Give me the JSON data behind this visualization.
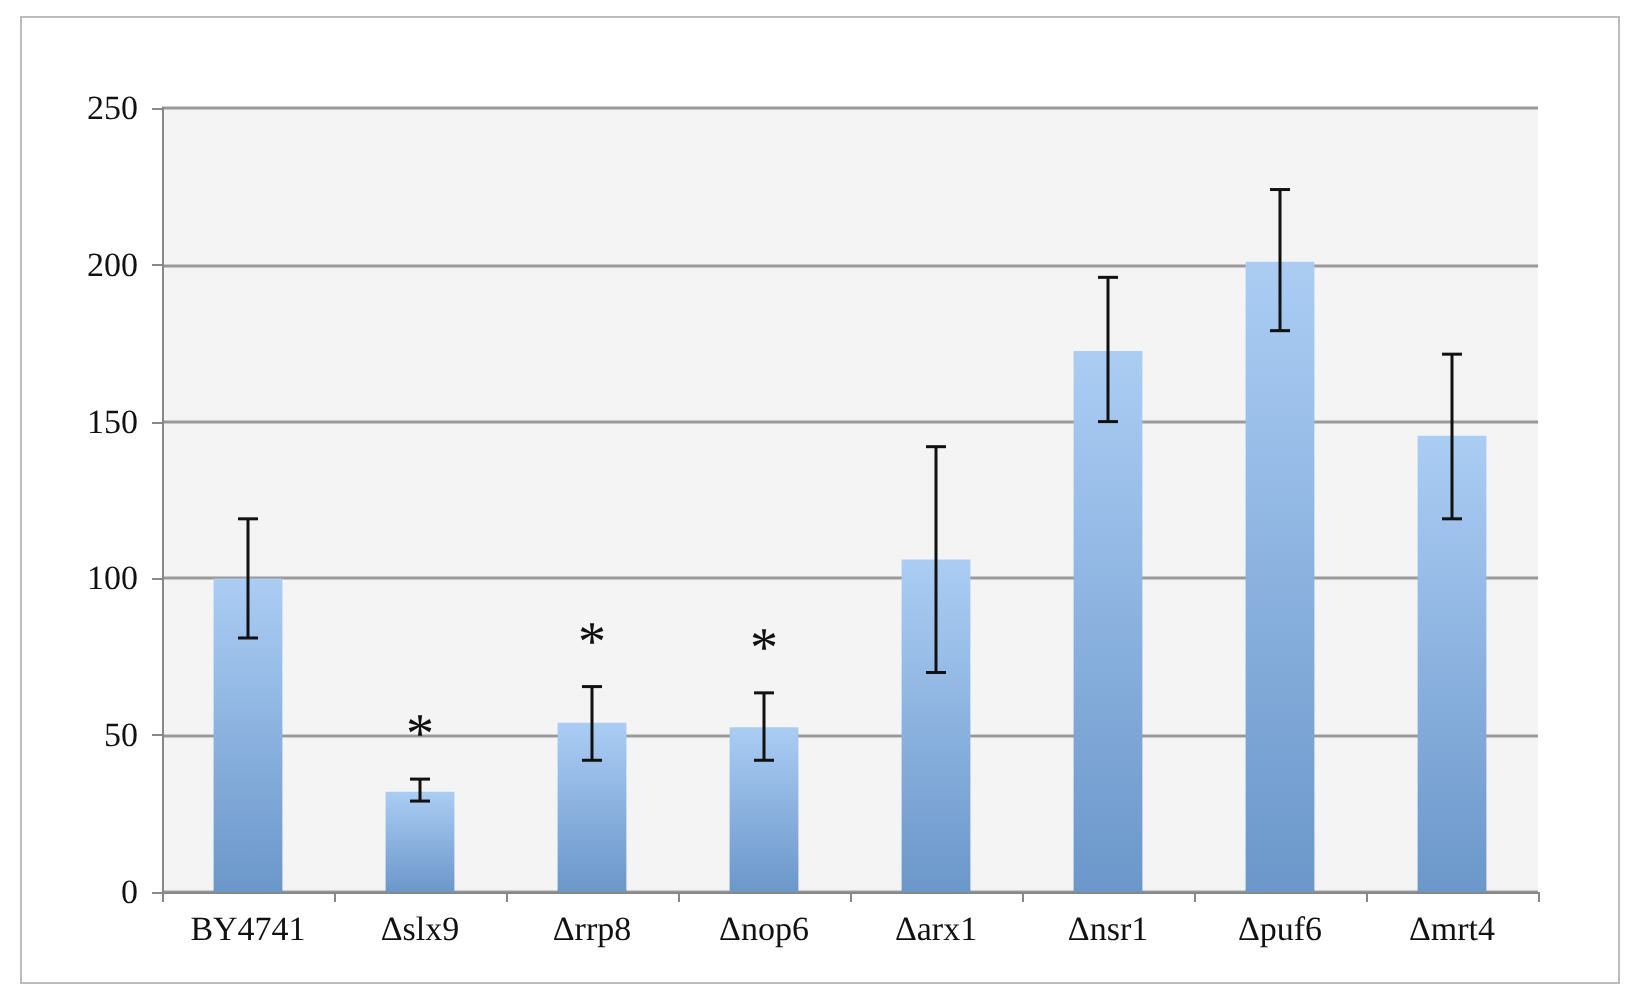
{
  "chart_data": {
    "type": "bar",
    "categories": [
      "BY4741",
      "Δslx9",
      "Δrrp8",
      "Δnop6",
      "Δarx1",
      "Δnsr1",
      "Δpuf6",
      "Δmrt4"
    ],
    "values": [
      100,
      32,
      54,
      52.5,
      106,
      172.5,
      201,
      145.5
    ],
    "errors": [
      [
        81,
        119
      ],
      [
        29,
        36
      ],
      [
        42,
        65.5
      ],
      [
        42,
        63.5
      ],
      [
        70,
        142
      ],
      [
        150,
        196
      ],
      [
        179,
        224
      ],
      [
        119,
        171.5
      ]
    ],
    "color": "#7eb2ee",
    "ylim": [
      0,
      250
    ],
    "yticks": [
      0,
      50,
      100,
      150,
      200,
      250
    ],
    "grid": "y",
    "annotations": [
      {
        "text": "*",
        "x": "Δslx9",
        "y": 36
      },
      {
        "text": "*",
        "x": "Δrrp8",
        "y": 65.5
      },
      {
        "text": "*",
        "x": "Δnop6",
        "y": 63.5
      }
    ]
  }
}
